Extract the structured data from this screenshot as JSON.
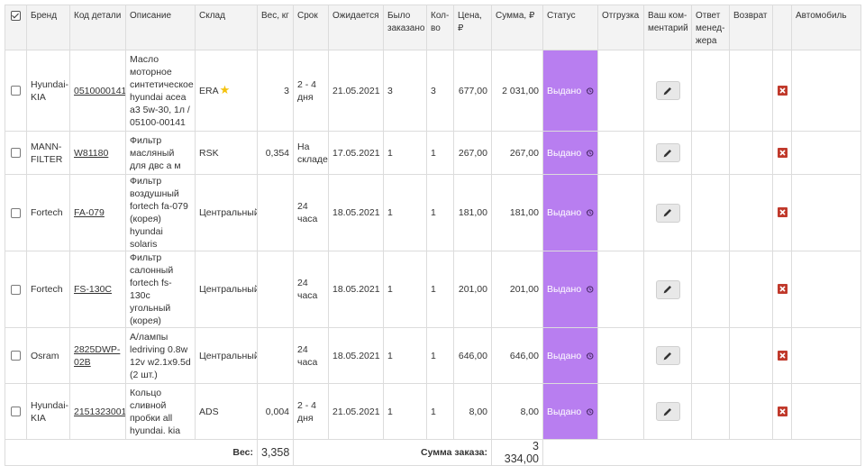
{
  "headers": {
    "brand": "Бренд",
    "code": "Код детали",
    "description": "Описание",
    "warehouse": "Склад",
    "weight": "Вес, кг",
    "term": "Срок",
    "expected": "Ожидается",
    "ordered": "Было заказано",
    "qty": "Кол-во",
    "price": "Цена, ₽",
    "sum": "Сумма, ₽",
    "status": "Статус",
    "shipment": "Отгрузка",
    "your_comment": "Ваш ком-ментарий",
    "manager_reply": "Ответ менед-жера",
    "return": "Возврат",
    "car": "Автомобиль"
  },
  "rows": [
    {
      "brand": "Hyundai-KIA",
      "code": "0510000141",
      "description": "Масло моторное синтетическое hyundai acea a3 5w-30, 1л / 05100-00141",
      "warehouse": "ERA",
      "starred": true,
      "weight": "3",
      "term": "2 - 4 дня",
      "expected": "21.05.2021",
      "ordered": "3",
      "qty": "3",
      "price": "677,00",
      "sum": "2 031,00",
      "status": "Выдано"
    },
    {
      "brand": "MANN-FILTER",
      "code": "W81180",
      "description": "Фильтр масляный для двс а м",
      "warehouse": "RSK",
      "starred": false,
      "weight": "0,354",
      "term": "На складе",
      "expected": "17.05.2021",
      "ordered": "1",
      "qty": "1",
      "price": "267,00",
      "sum": "267,00",
      "status": "Выдано"
    },
    {
      "brand": "Fortech",
      "code": "FA-079",
      "description": "Фильтр воздушный fortech fa-079 (корея) hyundai solaris",
      "warehouse": "Центральный",
      "starred": false,
      "weight": "",
      "term": "24 часа",
      "expected": "18.05.2021",
      "ordered": "1",
      "qty": "1",
      "price": "181,00",
      "sum": "181,00",
      "status": "Выдано"
    },
    {
      "brand": "Fortech",
      "code": "FS-130C",
      "description": "Фильтр салонный fortech fs-130c угольный (корея)",
      "warehouse": "Центральный",
      "starred": false,
      "weight": "",
      "term": "24 часа",
      "expected": "18.05.2021",
      "ordered": "1",
      "qty": "1",
      "price": "201,00",
      "sum": "201,00",
      "status": "Выдано"
    },
    {
      "brand": "Osram",
      "code": "2825DWP-02B",
      "description": "А/лампы ledriving 0.8w 12v w2.1x9.5d (2 шт.)",
      "warehouse": "Центральный",
      "starred": false,
      "weight": "",
      "term": "24 часа",
      "expected": "18.05.2021",
      "ordered": "1",
      "qty": "1",
      "price": "646,00",
      "sum": "646,00",
      "status": "Выдано"
    },
    {
      "brand": "Hyundai-KIA",
      "code": "2151323001",
      "description": "Кольцо сливной пробки all hyundai. kia",
      "warehouse": "ADS",
      "starred": false,
      "weight": "0,004",
      "term": "2 - 4 дня",
      "expected": "21.05.2021",
      "ordered": "1",
      "qty": "1",
      "price": "8,00",
      "sum": "8,00",
      "status": "Выдано"
    }
  ],
  "footer": {
    "weight_label": "Вес:",
    "weight_value": "3,358",
    "total_label": "Сумма заказа:",
    "total_value": "3 334,00"
  },
  "colors": {
    "status_bg": "#b87ef0",
    "delete_icon": "#c0392b",
    "star": "#f4c20d"
  },
  "icons": {
    "select_all": "checkbox-checked-icon",
    "history": "history-icon",
    "edit": "pencil-icon",
    "delete": "delete-x-icon",
    "favorite": "star-icon"
  }
}
